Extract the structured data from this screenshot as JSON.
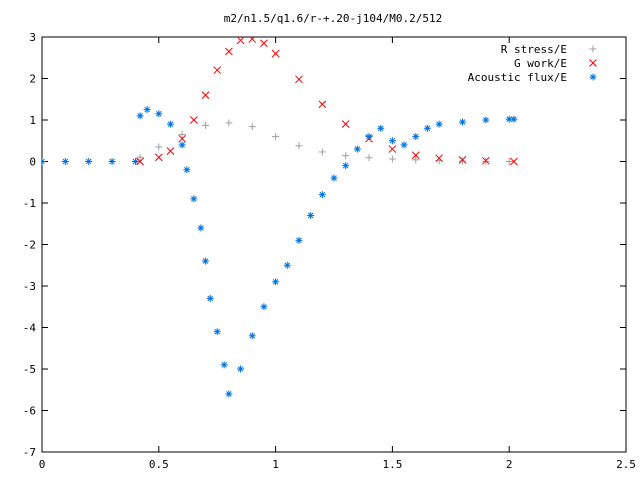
{
  "chart_data": {
    "type": "scatter",
    "title": "m2/n1.5/q1.6/r-+.20-j104/M0.2/512",
    "xlabel": "",
    "ylabel": "",
    "xlim": [
      0,
      2.5
    ],
    "ylim": [
      -7,
      3
    ],
    "xticks": [
      "0",
      "0.5",
      "1",
      "1.5",
      "2",
      "2.5"
    ],
    "yticks": [
      "3",
      "2",
      "1",
      "0",
      "-1",
      "-2",
      "-3",
      "-4",
      "-5",
      "-6",
      "-7"
    ],
    "legend_position": "top-right",
    "series": [
      {
        "name": "R stress/E",
        "marker": "plus",
        "color": "#a0a0a0",
        "x": [
          0.0,
          0.42,
          0.5,
          0.6,
          0.7,
          0.8,
          0.9,
          1.0,
          1.1,
          1.2,
          1.3,
          1.4,
          1.5,
          1.6,
          1.7,
          1.8,
          1.9,
          2.0
        ],
        "y": [
          0.0,
          0.1,
          0.35,
          0.65,
          0.87,
          0.93,
          0.84,
          0.6,
          0.38,
          0.23,
          0.14,
          0.09,
          0.06,
          0.04,
          0.02,
          0.01,
          0.0,
          0.0
        ]
      },
      {
        "name": "G work/E",
        "marker": "cross",
        "color": "#ff0000",
        "x": [
          0.42,
          0.5,
          0.55,
          0.6,
          0.65,
          0.7,
          0.75,
          0.8,
          0.85,
          0.9,
          0.95,
          1.0,
          1.1,
          1.2,
          1.3,
          1.4,
          1.5,
          1.6,
          1.7,
          1.8,
          1.9,
          2.02
        ],
        "y": [
          0.0,
          0.1,
          0.25,
          0.55,
          1.0,
          1.6,
          2.2,
          2.65,
          2.92,
          2.95,
          2.85,
          2.6,
          1.98,
          1.38,
          0.9,
          0.55,
          0.3,
          0.15,
          0.08,
          0.04,
          0.02,
          0.0
        ]
      },
      {
        "name": "Acoustic flux/E",
        "marker": "star",
        "color": "#0070e0",
        "x": [
          0.0,
          0.1,
          0.2,
          0.3,
          0.4,
          0.42,
          0.45,
          0.5,
          0.55,
          0.6,
          0.62,
          0.65,
          0.68,
          0.7,
          0.72,
          0.75,
          0.78,
          0.8,
          0.85,
          0.9,
          0.95,
          1.0,
          1.05,
          1.1,
          1.15,
          1.2,
          1.25,
          1.3,
          1.35,
          1.4,
          1.45,
          1.5,
          1.55,
          1.6,
          1.65,
          1.7,
          1.8,
          1.9,
          2.0,
          2.02
        ],
        "y": [
          0.0,
          0.0,
          0.0,
          0.0,
          0.0,
          1.1,
          1.25,
          1.15,
          0.9,
          0.4,
          -0.2,
          -0.9,
          -1.6,
          -2.4,
          -3.3,
          -4.1,
          -4.9,
          -5.6,
          -5.0,
          -4.2,
          -3.5,
          -2.9,
          -2.5,
          -1.9,
          -1.3,
          -0.8,
          -0.4,
          -0.1,
          0.3,
          0.6,
          0.8,
          0.5,
          0.4,
          0.6,
          0.8,
          0.9,
          0.95,
          1.0,
          1.02,
          1.02
        ]
      }
    ]
  }
}
